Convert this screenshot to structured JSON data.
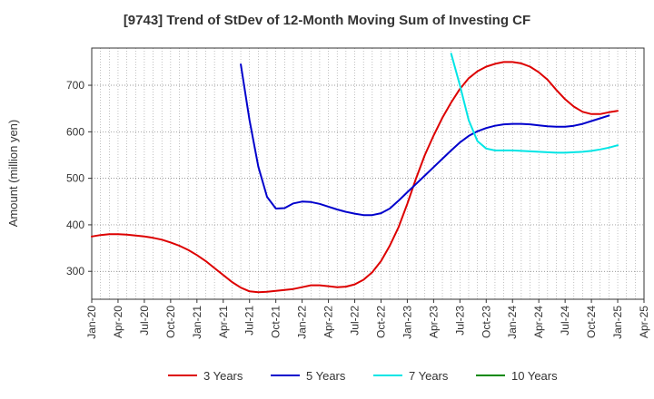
{
  "chart_data": {
    "type": "line",
    "title": "[9743]  Trend of StDev of 12-Month Moving Sum of Investing CF",
    "ylabel": "Amount (million yen)",
    "xlabel": "",
    "ylim": [
      240,
      780
    ],
    "yticks": [
      300,
      400,
      500,
      600,
      700
    ],
    "xlim": [
      "2020-01",
      "2025-04"
    ],
    "xticks": [
      "Jan-20",
      "Apr-20",
      "Jul-20",
      "Oct-20",
      "Jan-21",
      "Apr-21",
      "Jul-21",
      "Oct-21",
      "Jan-22",
      "Apr-22",
      "Jul-22",
      "Oct-22",
      "Jan-23",
      "Apr-23",
      "Jul-23",
      "Oct-23",
      "Jan-24",
      "Apr-24",
      "Jul-24",
      "Oct-24",
      "Jan-25",
      "Apr-25"
    ],
    "grid": true,
    "legend_position": "bottom",
    "series": [
      {
        "name": "3 Years",
        "color": "#dd0000",
        "points": [
          [
            "2020-01",
            375
          ],
          [
            "2020-02",
            378
          ],
          [
            "2020-03",
            380
          ],
          [
            "2020-04",
            380
          ],
          [
            "2020-05",
            379
          ],
          [
            "2020-06",
            377
          ],
          [
            "2020-07",
            375
          ],
          [
            "2020-08",
            372
          ],
          [
            "2020-09",
            368
          ],
          [
            "2020-10",
            362
          ],
          [
            "2020-11",
            355
          ],
          [
            "2020-12",
            346
          ],
          [
            "2021-01",
            335
          ],
          [
            "2021-02",
            322
          ],
          [
            "2021-03",
            307
          ],
          [
            "2021-04",
            292
          ],
          [
            "2021-05",
            277
          ],
          [
            "2021-06",
            265
          ],
          [
            "2021-07",
            257
          ],
          [
            "2021-08",
            255
          ],
          [
            "2021-09",
            256
          ],
          [
            "2021-10",
            258
          ],
          [
            "2021-11",
            260
          ],
          [
            "2021-12",
            262
          ],
          [
            "2022-01",
            266
          ],
          [
            "2022-02",
            270
          ],
          [
            "2022-03",
            270
          ],
          [
            "2022-04",
            268
          ],
          [
            "2022-05",
            266
          ],
          [
            "2022-06",
            267
          ],
          [
            "2022-07",
            272
          ],
          [
            "2022-08",
            282
          ],
          [
            "2022-09",
            298
          ],
          [
            "2022-10",
            322
          ],
          [
            "2022-11",
            355
          ],
          [
            "2022-12",
            395
          ],
          [
            "2023-01",
            445
          ],
          [
            "2023-02",
            500
          ],
          [
            "2023-03",
            550
          ],
          [
            "2023-04",
            592
          ],
          [
            "2023-05",
            630
          ],
          [
            "2023-06",
            663
          ],
          [
            "2023-07",
            692
          ],
          [
            "2023-08",
            715
          ],
          [
            "2023-09",
            730
          ],
          [
            "2023-10",
            740
          ],
          [
            "2023-11",
            746
          ],
          [
            "2023-12",
            750
          ],
          [
            "2024-01",
            750
          ],
          [
            "2024-02",
            747
          ],
          [
            "2024-03",
            740
          ],
          [
            "2024-04",
            728
          ],
          [
            "2024-05",
            712
          ],
          [
            "2024-06",
            690
          ],
          [
            "2024-07",
            670
          ],
          [
            "2024-08",
            654
          ],
          [
            "2024-09",
            643
          ],
          [
            "2024-10",
            638
          ],
          [
            "2024-11",
            638
          ],
          [
            "2024-12",
            642
          ],
          [
            "2025-01",
            645
          ]
        ]
      },
      {
        "name": "5 Years",
        "color": "#0000cc",
        "points": [
          [
            "2021-06",
            745
          ],
          [
            "2021-07",
            625
          ],
          [
            "2021-08",
            525
          ],
          [
            "2021-09",
            460
          ],
          [
            "2021-10",
            435
          ],
          [
            "2021-11",
            436
          ],
          [
            "2021-12",
            446
          ],
          [
            "2022-01",
            450
          ],
          [
            "2022-02",
            449
          ],
          [
            "2022-03",
            445
          ],
          [
            "2022-04",
            439
          ],
          [
            "2022-05",
            433
          ],
          [
            "2022-06",
            428
          ],
          [
            "2022-07",
            424
          ],
          [
            "2022-08",
            421
          ],
          [
            "2022-09",
            421
          ],
          [
            "2022-10",
            425
          ],
          [
            "2022-11",
            435
          ],
          [
            "2022-12",
            452
          ],
          [
            "2023-01",
            470
          ],
          [
            "2023-02",
            488
          ],
          [
            "2023-03",
            506
          ],
          [
            "2023-04",
            524
          ],
          [
            "2023-05",
            542
          ],
          [
            "2023-06",
            560
          ],
          [
            "2023-07",
            577
          ],
          [
            "2023-08",
            591
          ],
          [
            "2023-09",
            601
          ],
          [
            "2023-10",
            608
          ],
          [
            "2023-11",
            613
          ],
          [
            "2023-12",
            616
          ],
          [
            "2024-01",
            617
          ],
          [
            "2024-02",
            617
          ],
          [
            "2024-03",
            616
          ],
          [
            "2024-04",
            614
          ],
          [
            "2024-05",
            612
          ],
          [
            "2024-06",
            611
          ],
          [
            "2024-07",
            611
          ],
          [
            "2024-08",
            613
          ],
          [
            "2024-09",
            617
          ],
          [
            "2024-10",
            623
          ],
          [
            "2024-11",
            629
          ],
          [
            "2024-12",
            635
          ]
        ]
      },
      {
        "name": "7 Years",
        "color": "#00e5e5",
        "points": [
          [
            "2023-06",
            768
          ],
          [
            "2023-07",
            700
          ],
          [
            "2023-08",
            625
          ],
          [
            "2023-09",
            580
          ],
          [
            "2023-10",
            564
          ],
          [
            "2023-11",
            560
          ],
          [
            "2023-12",
            560
          ],
          [
            "2024-01",
            560
          ],
          [
            "2024-02",
            559
          ],
          [
            "2024-03",
            558
          ],
          [
            "2024-04",
            557
          ],
          [
            "2024-05",
            556
          ],
          [
            "2024-06",
            555
          ],
          [
            "2024-07",
            555
          ],
          [
            "2024-08",
            556
          ],
          [
            "2024-09",
            557
          ],
          [
            "2024-10",
            559
          ],
          [
            "2024-11",
            562
          ],
          [
            "2024-12",
            566
          ],
          [
            "2025-01",
            571
          ]
        ]
      },
      {
        "name": "10 Years",
        "color": "#008800",
        "points": []
      }
    ]
  }
}
